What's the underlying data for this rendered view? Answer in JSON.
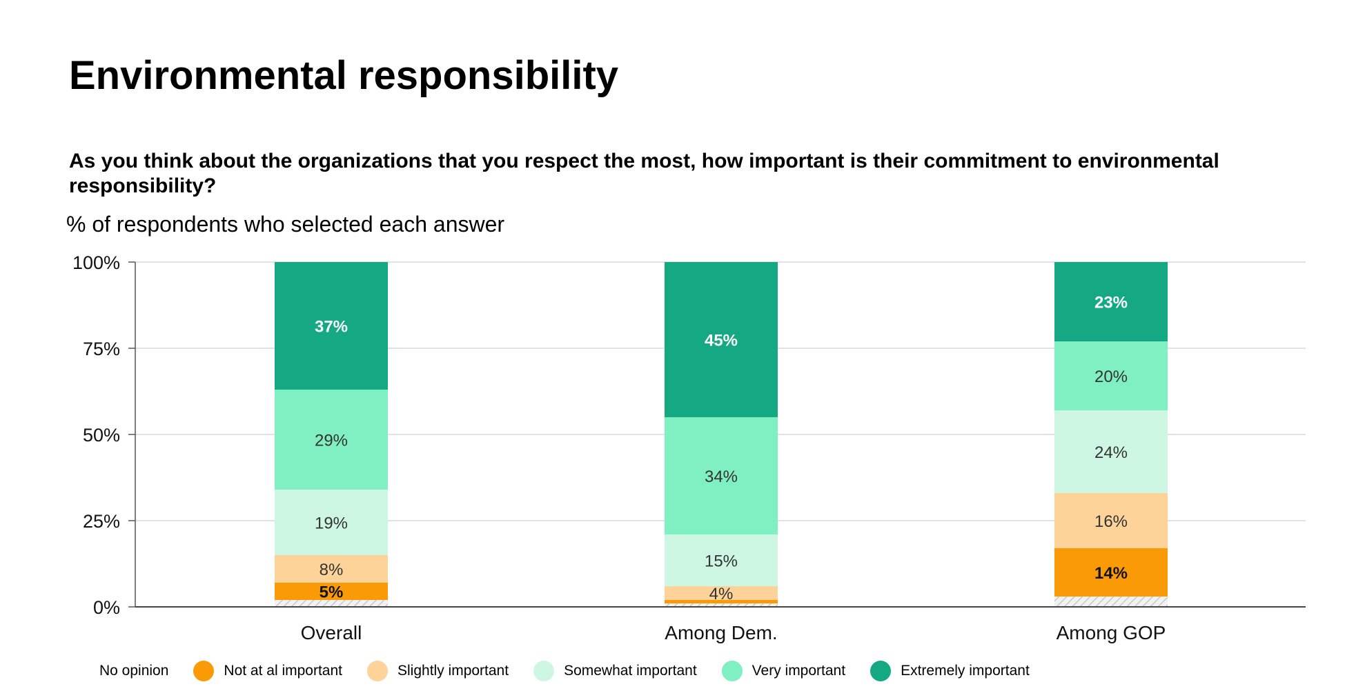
{
  "title": "Environmental responsibility",
  "question": "As you think about the organizations that you respect the most, how important is their commitment to environmental responsibility?",
  "subtitle": "% of respondents who selected each answer",
  "chart_data": {
    "type": "bar",
    "stacked": true,
    "categories": [
      "Overall",
      "Among Dem.",
      "Among GOP"
    ],
    "ylim": [
      0,
      100
    ],
    "yticks": [
      "0%",
      "25%",
      "50%",
      "75%",
      "100%"
    ],
    "ytick_values": [
      0,
      25,
      50,
      75,
      100
    ],
    "grid": true,
    "legend_position": "bottom",
    "series": [
      {
        "name": "No opinion",
        "values": [
          2,
          1,
          3
        ],
        "color": "#e0e0e0",
        "pattern": "hatched",
        "labels": [
          "",
          "",
          ""
        ]
      },
      {
        "name": "Not at al important",
        "values": [
          5,
          1,
          14
        ],
        "color": "#f99a06",
        "label_color": "#111111",
        "labels": [
          "5%",
          "",
          "14%"
        ]
      },
      {
        "name": "Slightly important",
        "values": [
          8,
          4,
          16
        ],
        "color": "#fdd39a",
        "label_color": "#333333",
        "labels": [
          "8%",
          "4%",
          "16%"
        ]
      },
      {
        "name": "Somewhat important",
        "values": [
          19,
          15,
          24
        ],
        "color": "#cdf7e3",
        "label_color": "#333333",
        "labels": [
          "19%",
          "15%",
          "24%"
        ]
      },
      {
        "name": "Very important",
        "values": [
          29,
          34,
          20
        ],
        "color": "#80efc2",
        "label_color": "#333333",
        "labels": [
          "29%",
          "34%",
          "20%"
        ]
      },
      {
        "name": "Extremely important",
        "values": [
          37,
          45,
          23
        ],
        "color": "#14a982",
        "label_color": "#ffffff",
        "labels": [
          "37%",
          "45%",
          "23%"
        ]
      }
    ]
  }
}
